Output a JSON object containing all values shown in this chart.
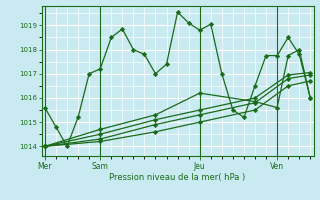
{
  "background_color": "#c8eaf0",
  "plot_bg_color": "#c8eaf0",
  "grid_color": "#ffffff",
  "line_color": "#1a6b1a",
  "marker_color": "#1a6b1a",
  "xlabel": "Pression niveau de la mer( hPa )",
  "ylabel_ticks": [
    1014,
    1015,
    1016,
    1017,
    1018,
    1019
  ],
  "xticklabels": [
    "Mer",
    "Sam",
    "Jeu",
    "Ven"
  ],
  "xtick_positions": [
    0,
    5,
    14,
    21
  ],
  "series1_x": [
    0,
    1,
    2,
    3,
    4,
    5,
    6,
    7,
    8,
    9,
    10,
    11,
    12,
    13,
    14,
    15,
    16,
    17,
    18,
    19,
    20,
    21,
    22,
    23,
    24
  ],
  "series1_y": [
    1015.6,
    1014.8,
    1014.0,
    1015.2,
    1017.0,
    1017.2,
    1018.5,
    1018.85,
    1018.0,
    1017.8,
    1017.0,
    1017.4,
    1019.55,
    1019.1,
    1018.8,
    1019.05,
    1017.0,
    1015.5,
    1015.2,
    1016.5,
    1017.75,
    1017.75,
    1018.5,
    1017.8,
    1016.0
  ],
  "series2_x": [
    0,
    5,
    10,
    14,
    19,
    22,
    24
  ],
  "series2_y": [
    1014.0,
    1014.2,
    1014.6,
    1015.0,
    1015.5,
    1016.5,
    1016.7
  ],
  "series3_x": [
    0,
    5,
    10,
    14,
    19,
    22,
    24
  ],
  "series3_y": [
    1014.0,
    1014.3,
    1014.9,
    1015.3,
    1015.8,
    1016.8,
    1016.95
  ],
  "series4_x": [
    0,
    5,
    10,
    14,
    19,
    22,
    24
  ],
  "series4_y": [
    1014.0,
    1014.5,
    1015.1,
    1015.5,
    1016.0,
    1016.95,
    1017.05
  ],
  "series5_x": [
    0,
    5,
    10,
    14,
    19,
    21,
    22,
    23,
    24
  ],
  "series5_y": [
    1014.0,
    1014.7,
    1015.3,
    1016.2,
    1015.85,
    1015.6,
    1017.75,
    1018.0,
    1016.0
  ],
  "xlim": [
    -0.3,
    24.3
  ],
  "ylim": [
    1013.6,
    1019.8
  ],
  "vline_positions": [
    0,
    5,
    14,
    21
  ],
  "figsize": [
    3.2,
    2.0
  ],
  "dpi": 100
}
